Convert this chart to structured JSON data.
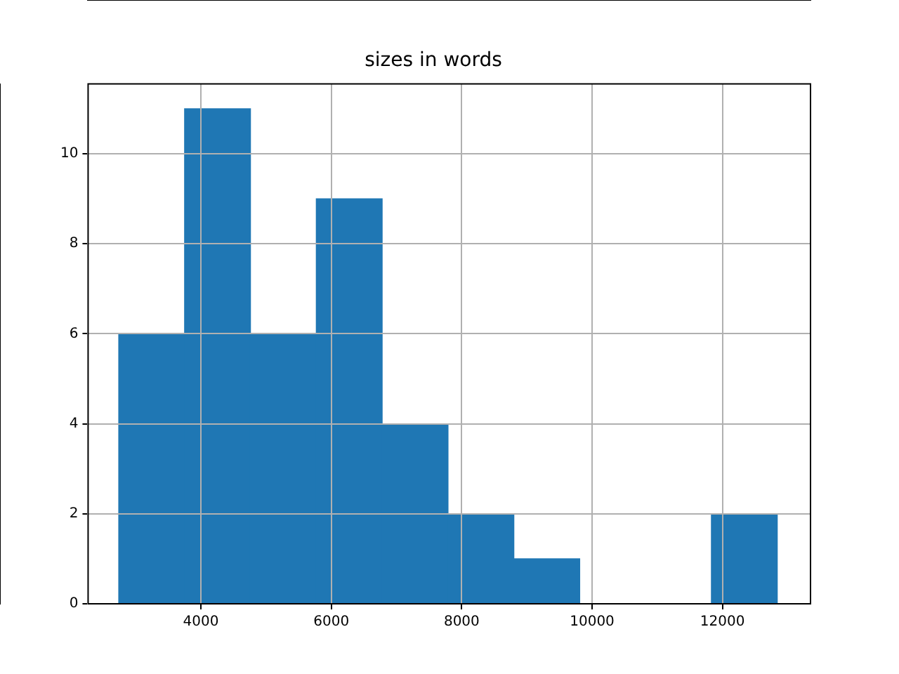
{
  "chart_data": {
    "type": "histogram",
    "title": "sizes in words",
    "bins": [
      2740,
      3750,
      4760,
      5770,
      6780,
      7790,
      8800,
      9810,
      10820,
      11830,
      12840
    ],
    "values": [
      6,
      11,
      6,
      9,
      4,
      2,
      1,
      0,
      0,
      2
    ],
    "color": "#1f77b4",
    "xlim": [
      2270,
      13350
    ],
    "xticks": [
      4000,
      6000,
      8000,
      10000,
      12000
    ],
    "ylim": [
      0,
      11.55
    ],
    "yticks": [
      0,
      2,
      4,
      6,
      8,
      10
    ],
    "grid": true
  }
}
